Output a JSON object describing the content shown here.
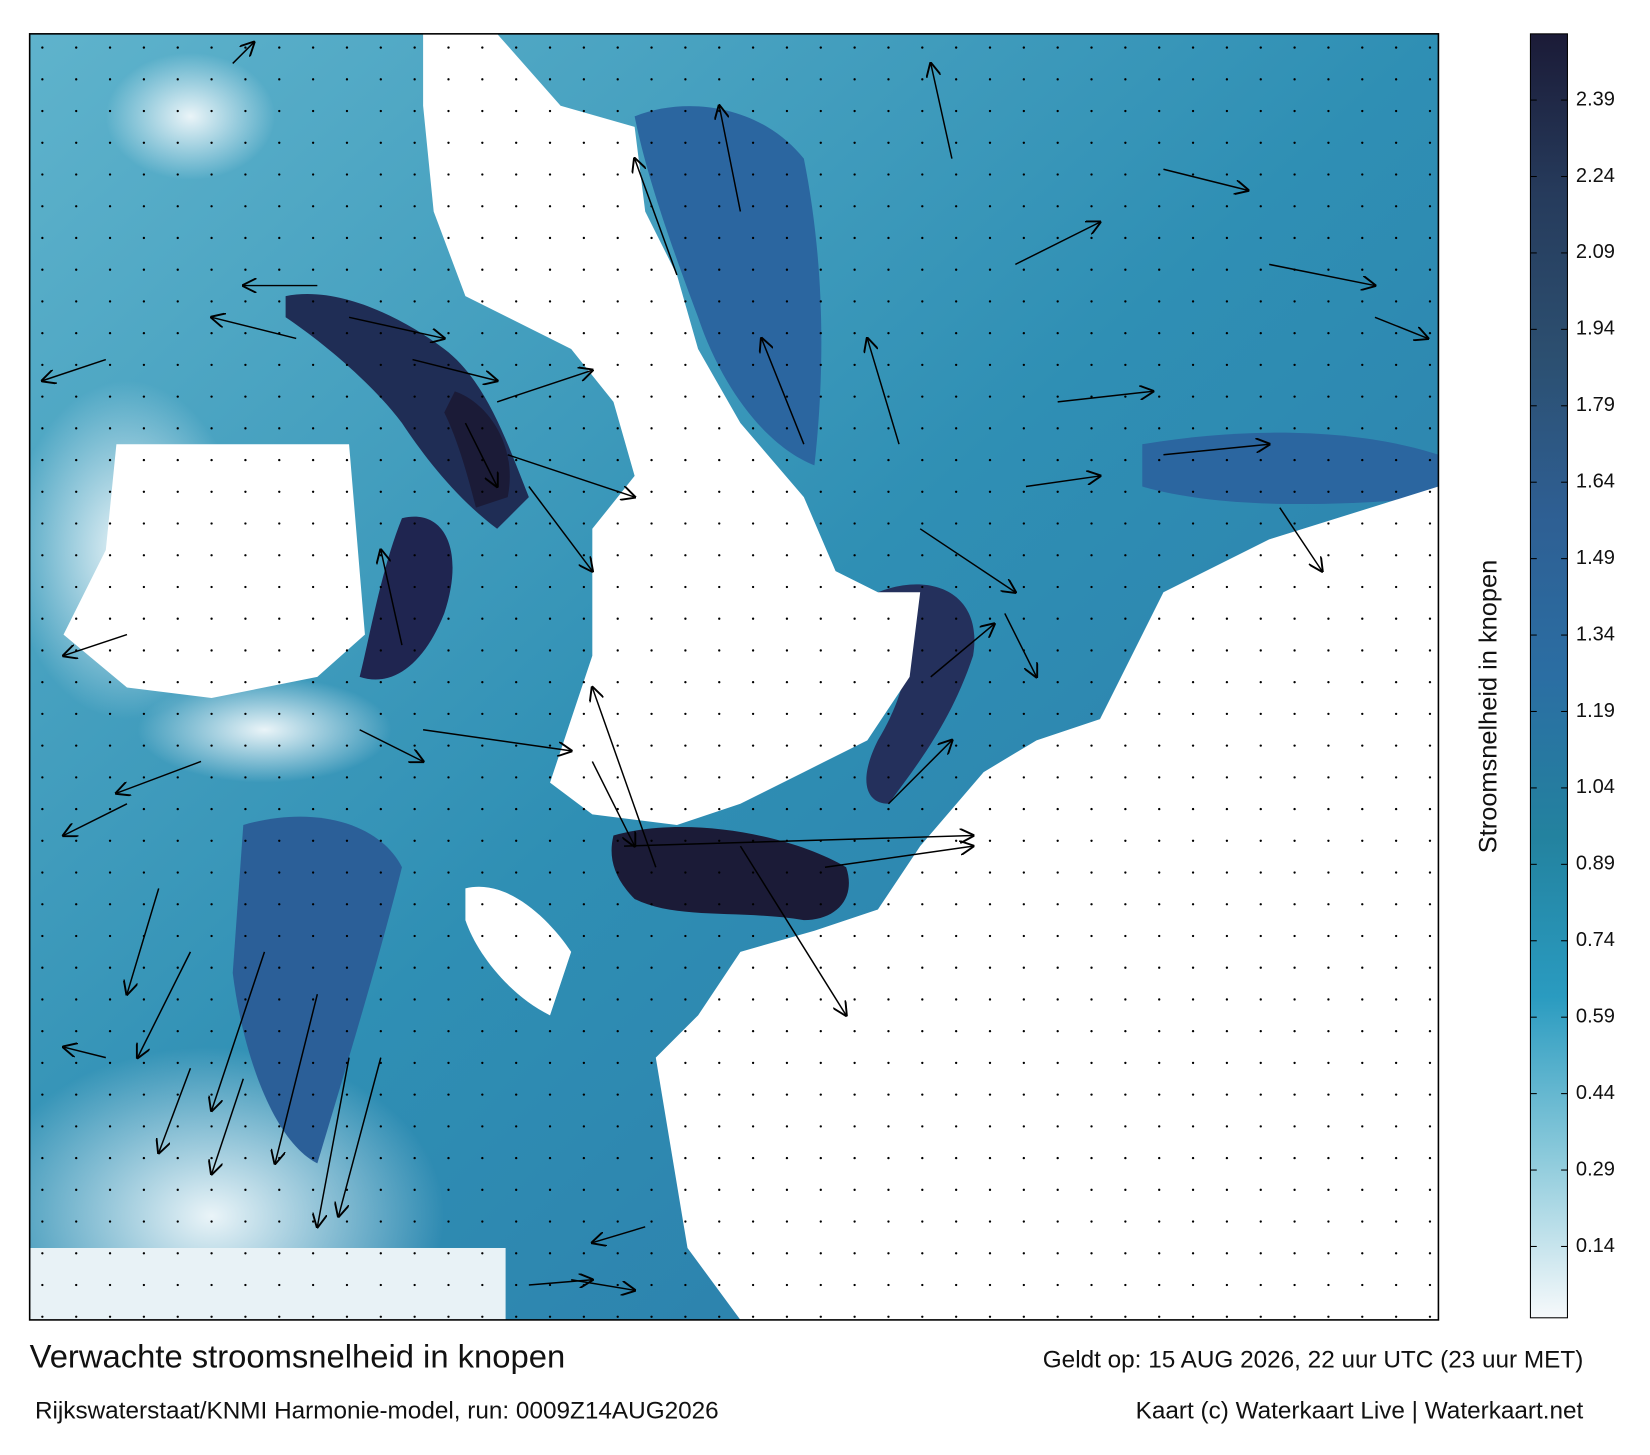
{
  "header": {
    "title": "Verwachte stroomsnelheid in knopen",
    "valid_time": "Geldt op: 15 AUG 2026, 22 uur UTC (23 uur MET)"
  },
  "footer": {
    "model": "Rijkswaterstaat/KNMI Harmonie-model, run: 0009Z14AUG2026",
    "credit": "Kaart (c) Waterkaart Live | Waterkaart.net"
  },
  "colorbar": {
    "label": "Stroomsnelheid in knopen",
    "lim": [
      0,
      2.52
    ],
    "ticks": [
      0.14,
      0.29,
      0.44,
      0.59,
      0.74,
      0.89,
      1.04,
      1.19,
      1.34,
      1.49,
      1.64,
      1.79,
      1.94,
      2.09,
      2.24,
      2.39
    ],
    "colors": [
      "#f6f9fb",
      "#8ccadb",
      "#2a9bc0",
      "#23829f",
      "#2b6ea3",
      "#2e5f93",
      "#2c4f70",
      "#263b5c",
      "#1b1b37"
    ]
  }
}
